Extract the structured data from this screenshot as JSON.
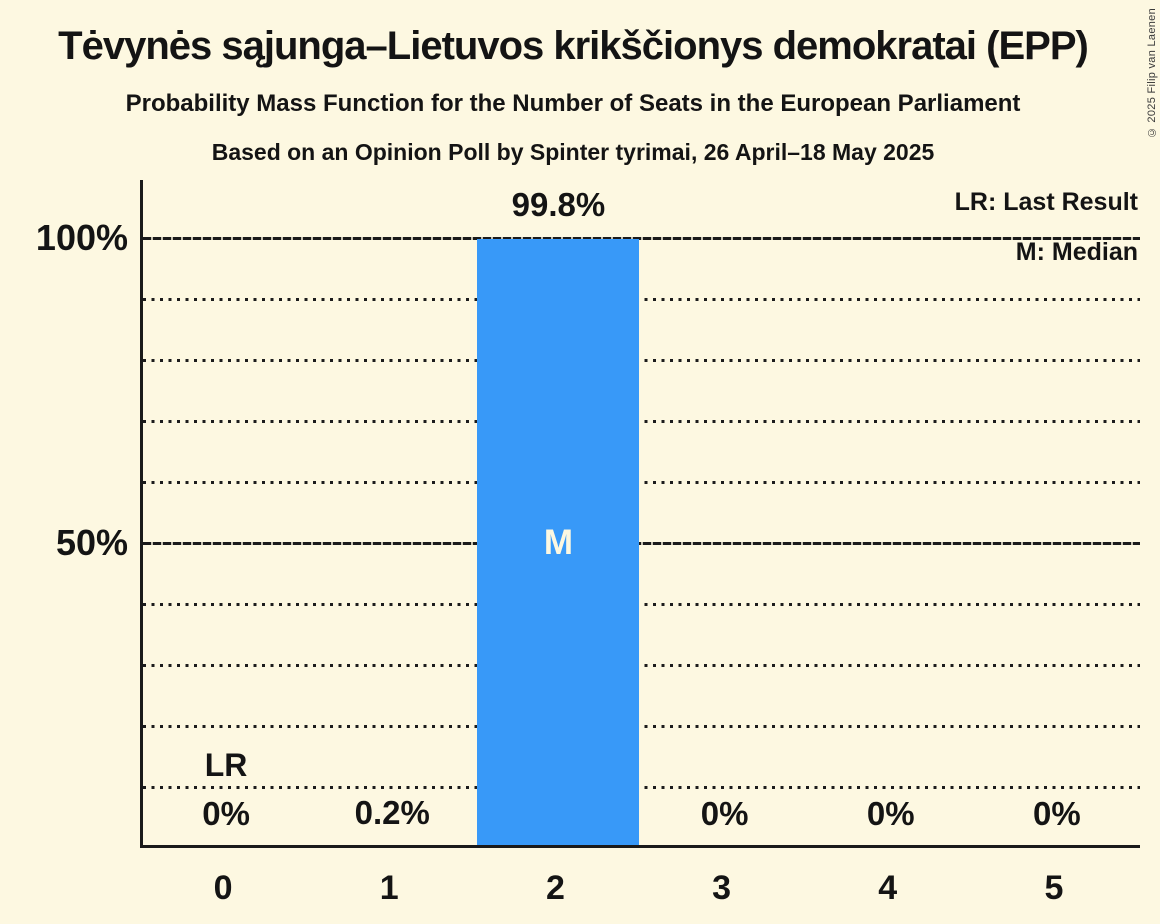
{
  "title": "Tėvynės sąjunga–Lietuvos krikščionys demokratai (EPP)",
  "subtitle": "Probability Mass Function for the Number of Seats in the European Parliament",
  "source_line": "Based on an Opinion Poll by Spinter tyrimai, 26 April–18 May 2025",
  "copyright": "© 2025 Filip van Laenen",
  "legend": {
    "last_result": "LR: Last Result",
    "median": "M: Median"
  },
  "colors": {
    "background": "#FDF8E1",
    "bar": "#3899F8",
    "text": "#141414",
    "median_letter": "#FDF8E1"
  },
  "chart_data": {
    "type": "bar",
    "title": "Probability Mass Function for the Number of Seats in the European Parliament",
    "xlabel": "",
    "ylabel": "",
    "categories": [
      "0",
      "1",
      "2",
      "3",
      "4",
      "5"
    ],
    "values": [
      0,
      0.2,
      99.8,
      0,
      0,
      0
    ],
    "value_labels": [
      "0%",
      "0.2%",
      "99.8%",
      "0%",
      "0%",
      "0%"
    ],
    "yticks": [
      {
        "value": 100,
        "label": "100%"
      },
      {
        "value": 50,
        "label": "50%"
      }
    ],
    "gridlines": {
      "dotted": [
        10,
        20,
        30,
        40,
        60,
        70,
        80,
        90
      ],
      "solid": [
        50,
        100
      ]
    },
    "ylim": [
      0,
      100
    ],
    "grid": "horizontal",
    "legend_position": "top-right",
    "annotations": {
      "last_result_category": "0",
      "last_result_label": "LR",
      "median_category": "2",
      "median_label": "M"
    }
  }
}
